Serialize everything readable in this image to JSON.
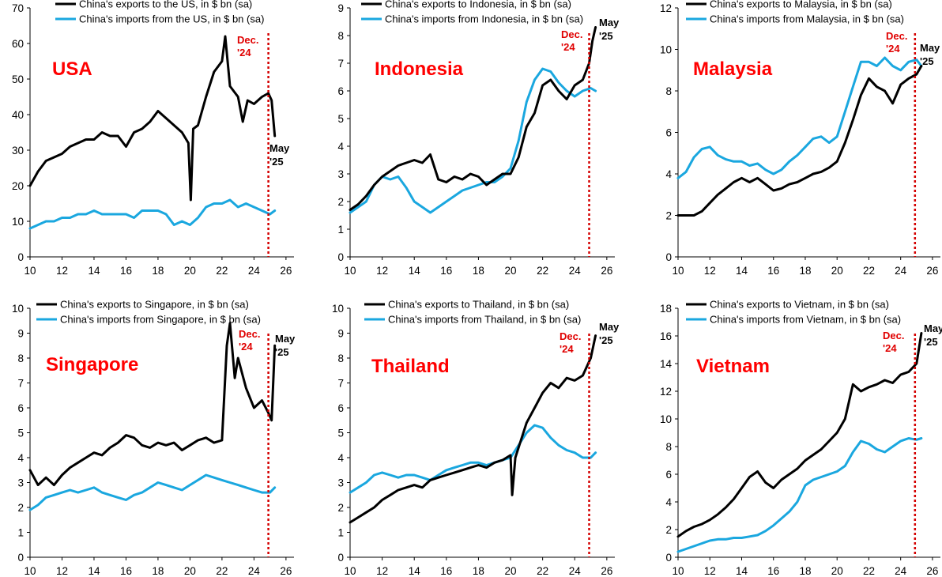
{
  "colors": {
    "exports": "#000000",
    "imports": "#1aa7df",
    "marker": "#d40000",
    "country": "#ff0000"
  },
  "annotations": {
    "dec": [
      "Dec.",
      "'24"
    ],
    "may": [
      "May",
      "'25"
    ]
  },
  "chart_data": [
    {
      "type": "line",
      "country_label": "USA",
      "ylim": [
        0,
        70
      ],
      "yticks": [
        0,
        10,
        20,
        30,
        40,
        50,
        60,
        70
      ],
      "xlim": [
        10,
        26.5
      ],
      "xticks": [
        10,
        12,
        14,
        16,
        18,
        20,
        22,
        24,
        26
      ],
      "marker_x": 24.9,
      "series": [
        {
          "name": "China's exports to the US, in $ bn (sa)",
          "x": [
            10,
            10.5,
            11,
            11.5,
            12,
            12.5,
            13,
            13.5,
            14,
            14.5,
            15,
            15.5,
            16,
            16.5,
            17,
            17.5,
            18,
            18.5,
            19,
            19.5,
            19.9,
            20.05,
            20.2,
            20.5,
            21,
            21.5,
            22,
            22.2,
            22.5,
            23,
            23.3,
            23.6,
            24,
            24.5,
            24.9,
            25.1,
            25.3
          ],
          "values": [
            20,
            24,
            27,
            28,
            29,
            31,
            32,
            33,
            33,
            35,
            34,
            34,
            31,
            35,
            36,
            38,
            41,
            39,
            37,
            35,
            32,
            16,
            36,
            37,
            45,
            52,
            55,
            62,
            48,
            45,
            38,
            44,
            43,
            45,
            46,
            44,
            34
          ]
        },
        {
          "name": "China's imports from the US, in $ bn (sa)",
          "x": [
            10,
            10.5,
            11,
            11.5,
            12,
            12.5,
            13,
            13.5,
            14,
            14.5,
            15,
            15.5,
            16,
            16.5,
            17,
            17.5,
            18,
            18.5,
            19,
            19.5,
            20,
            20.5,
            21,
            21.5,
            22,
            22.5,
            23,
            23.5,
            24,
            24.5,
            25,
            25.3
          ],
          "values": [
            8,
            9,
            10,
            10,
            11,
            11,
            12,
            12,
            13,
            12,
            12,
            12,
            12,
            11,
            13,
            13,
            13,
            12,
            9,
            10,
            9,
            11,
            14,
            15,
            15,
            16,
            14,
            15,
            14,
            13,
            12,
            13
          ]
        }
      ]
    },
    {
      "type": "line",
      "country_label": "Indonesia",
      "ylim": [
        0,
        9
      ],
      "yticks": [
        0,
        1,
        2,
        3,
        4,
        5,
        6,
        7,
        8,
        9
      ],
      "xlim": [
        10,
        26.5
      ],
      "xticks": [
        10,
        12,
        14,
        16,
        18,
        20,
        22,
        24,
        26
      ],
      "marker_x": 24.9,
      "series": [
        {
          "name": "China's exports to Indonesia, in $ bn (sa)",
          "x": [
            10,
            10.5,
            11,
            11.5,
            12,
            12.5,
            13,
            13.5,
            14,
            14.5,
            15,
            15.5,
            16,
            16.5,
            17,
            17.5,
            18,
            18.5,
            19,
            19.5,
            20,
            20.5,
            21,
            21.5,
            22,
            22.5,
            23,
            23.5,
            24,
            24.5,
            24.9,
            25.1,
            25.3
          ],
          "values": [
            1.7,
            1.9,
            2.2,
            2.6,
            2.9,
            3.1,
            3.3,
            3.4,
            3.5,
            3.4,
            3.7,
            2.8,
            2.7,
            2.9,
            2.8,
            3.0,
            2.9,
            2.6,
            2.8,
            3.0,
            3.0,
            3.6,
            4.7,
            5.2,
            6.2,
            6.4,
            6.0,
            5.7,
            6.2,
            6.4,
            7.0,
            7.8,
            8.3
          ]
        },
        {
          "name": "China's imports from Indonesia, in $ bn (sa)",
          "x": [
            10,
            10.5,
            11,
            11.5,
            12,
            12.5,
            13,
            13.5,
            14,
            14.5,
            15,
            15.5,
            16,
            16.5,
            17,
            17.5,
            18,
            18.5,
            19,
            19.5,
            20,
            20.5,
            21,
            21.5,
            22,
            22.5,
            23,
            23.5,
            24,
            24.5,
            25,
            25.3
          ],
          "values": [
            1.6,
            1.8,
            2.0,
            2.6,
            2.9,
            2.8,
            2.9,
            2.5,
            2.0,
            1.8,
            1.6,
            1.8,
            2.0,
            2.2,
            2.4,
            2.5,
            2.6,
            2.7,
            2.7,
            2.9,
            3.2,
            4.2,
            5.6,
            6.4,
            6.8,
            6.7,
            6.3,
            6.0,
            5.8,
            6.0,
            6.1,
            6.0
          ]
        }
      ]
    },
    {
      "type": "line",
      "country_label": "Malaysia",
      "ylim": [
        0,
        12
      ],
      "yticks": [
        0,
        2,
        4,
        6,
        8,
        10,
        12
      ],
      "xlim": [
        10,
        26.5
      ],
      "xticks": [
        10,
        12,
        14,
        16,
        18,
        20,
        22,
        24,
        26
      ],
      "marker_x": 24.9,
      "series": [
        {
          "name": "China's exports to Malaysia, in $ bn (sa)",
          "x": [
            10,
            10.5,
            11,
            11.5,
            12,
            12.5,
            13,
            13.5,
            14,
            14.5,
            15,
            15.5,
            16,
            16.5,
            17,
            17.5,
            18,
            18.5,
            19,
            19.5,
            20,
            20.5,
            21,
            21.5,
            22,
            22.5,
            23,
            23.5,
            24,
            24.5,
            25,
            25.3
          ],
          "values": [
            2.0,
            2.0,
            2.0,
            2.2,
            2.6,
            3.0,
            3.3,
            3.6,
            3.8,
            3.6,
            3.8,
            3.5,
            3.2,
            3.3,
            3.5,
            3.6,
            3.8,
            4.0,
            4.1,
            4.3,
            4.6,
            5.5,
            6.6,
            7.8,
            8.6,
            8.2,
            8.0,
            7.4,
            8.3,
            8.6,
            8.8,
            9.2
          ]
        },
        {
          "name": "China's imports from Malaysia, in $ bn (sa)",
          "x": [
            10,
            10.5,
            11,
            11.5,
            12,
            12.5,
            13,
            13.5,
            14,
            14.5,
            15,
            15.5,
            16,
            16.5,
            17,
            17.5,
            18,
            18.5,
            19,
            19.5,
            20,
            20.5,
            21,
            21.5,
            22,
            22.5,
            23,
            23.5,
            24,
            24.5,
            25,
            25.3
          ],
          "values": [
            3.8,
            4.1,
            4.8,
            5.2,
            5.3,
            4.9,
            4.7,
            4.6,
            4.6,
            4.4,
            4.5,
            4.2,
            4.0,
            4.2,
            4.6,
            4.9,
            5.3,
            5.7,
            5.8,
            5.5,
            5.8,
            7.0,
            8.2,
            9.4,
            9.4,
            9.2,
            9.6,
            9.2,
            9.0,
            9.4,
            9.5,
            9.2
          ]
        }
      ]
    },
    {
      "type": "line",
      "country_label": "Singapore",
      "ylim": [
        0,
        10
      ],
      "yticks": [
        0,
        1,
        2,
        3,
        4,
        5,
        6,
        7,
        8,
        9,
        10
      ],
      "xlim": [
        10,
        26.5
      ],
      "xticks": [
        10,
        12,
        14,
        16,
        18,
        20,
        22,
        24,
        26
      ],
      "marker_x": 24.9,
      "series": [
        {
          "name": "China's exports to Singapore, in $ bn (sa)",
          "x": [
            10,
            10.5,
            11,
            11.5,
            12,
            12.5,
            13,
            13.5,
            14,
            14.5,
            15,
            15.5,
            16,
            16.5,
            17,
            17.5,
            18,
            18.5,
            19,
            19.5,
            20,
            20.5,
            21,
            21.5,
            22,
            22.3,
            22.5,
            22.8,
            23,
            23.5,
            24,
            24.5,
            24.9,
            25.1,
            25.3
          ],
          "values": [
            3.5,
            2.9,
            3.2,
            2.9,
            3.3,
            3.6,
            3.8,
            4.0,
            4.2,
            4.1,
            4.4,
            4.6,
            4.9,
            4.8,
            4.5,
            4.4,
            4.6,
            4.5,
            4.6,
            4.3,
            4.5,
            4.7,
            4.8,
            4.6,
            4.7,
            8.5,
            9.4,
            7.2,
            8.0,
            6.8,
            6.0,
            6.3,
            5.8,
            5.5,
            8.5
          ]
        },
        {
          "name": "China's imports from Singapore, in $ bn (sa)",
          "x": [
            10,
            10.5,
            11,
            11.5,
            12,
            12.5,
            13,
            13.5,
            14,
            14.5,
            15,
            15.5,
            16,
            16.5,
            17,
            17.5,
            18,
            18.5,
            19,
            19.5,
            20,
            20.5,
            21,
            21.5,
            22,
            22.5,
            23,
            23.5,
            24,
            24.5,
            25,
            25.3
          ],
          "values": [
            1.9,
            2.1,
            2.4,
            2.5,
            2.6,
            2.7,
            2.6,
            2.7,
            2.8,
            2.6,
            2.5,
            2.4,
            2.3,
            2.5,
            2.6,
            2.8,
            3.0,
            2.9,
            2.8,
            2.7,
            2.9,
            3.1,
            3.3,
            3.2,
            3.1,
            3.0,
            2.9,
            2.8,
            2.7,
            2.6,
            2.6,
            2.8
          ]
        }
      ]
    },
    {
      "type": "line",
      "country_label": "Thailand",
      "ylim": [
        0,
        10
      ],
      "yticks": [
        0,
        1,
        2,
        3,
        4,
        5,
        6,
        7,
        8,
        9,
        10
      ],
      "xlim": [
        10,
        26.5
      ],
      "xticks": [
        10,
        12,
        14,
        16,
        18,
        20,
        22,
        24,
        26
      ],
      "marker_x": 24.9,
      "series": [
        {
          "name": "China's exports to Thailand, in $ bn (sa)",
          "x": [
            10,
            10.5,
            11,
            11.5,
            12,
            12.5,
            13,
            13.5,
            14,
            14.5,
            15,
            15.5,
            16,
            16.5,
            17,
            17.5,
            18,
            18.5,
            19,
            19.5,
            20,
            20.1,
            20.3,
            20.6,
            21,
            21.5,
            22,
            22.5,
            23,
            23.5,
            24,
            24.5,
            25,
            25.3
          ],
          "values": [
            1.4,
            1.6,
            1.8,
            2.0,
            2.3,
            2.5,
            2.7,
            2.8,
            2.9,
            2.8,
            3.1,
            3.2,
            3.3,
            3.4,
            3.5,
            3.6,
            3.7,
            3.6,
            3.8,
            3.9,
            4.1,
            2.5,
            4.0,
            4.6,
            5.4,
            6.0,
            6.6,
            7.0,
            6.8,
            7.2,
            7.1,
            7.3,
            8.0,
            8.9
          ]
        },
        {
          "name": "China's imports from Thailand, in $ bn (sa)",
          "x": [
            10,
            10.5,
            11,
            11.5,
            12,
            12.5,
            13,
            13.5,
            14,
            14.5,
            15,
            15.5,
            16,
            16.5,
            17,
            17.5,
            18,
            18.5,
            19,
            19.5,
            20,
            20.5,
            21,
            21.5,
            22,
            22.5,
            23,
            23.5,
            24,
            24.5,
            25,
            25.3
          ],
          "values": [
            2.6,
            2.8,
            3.0,
            3.3,
            3.4,
            3.3,
            3.2,
            3.3,
            3.3,
            3.2,
            3.1,
            3.3,
            3.5,
            3.6,
            3.7,
            3.8,
            3.8,
            3.7,
            3.8,
            3.9,
            4.0,
            4.5,
            5.0,
            5.3,
            5.2,
            4.8,
            4.5,
            4.3,
            4.2,
            4.0,
            4.0,
            4.2
          ]
        }
      ]
    },
    {
      "type": "line",
      "country_label": "Vietnam",
      "ylim": [
        0,
        18
      ],
      "yticks": [
        0,
        2,
        4,
        6,
        8,
        10,
        12,
        14,
        16,
        18
      ],
      "xlim": [
        10,
        26.5
      ],
      "xticks": [
        10,
        12,
        14,
        16,
        18,
        20,
        22,
        24,
        26
      ],
      "marker_x": 24.9,
      "series": [
        {
          "name": "China's exports to Vietnam, in $ bn (sa)",
          "x": [
            10,
            10.5,
            11,
            11.5,
            12,
            12.5,
            13,
            13.5,
            14,
            14.5,
            15,
            15.5,
            16,
            16.5,
            17,
            17.5,
            18,
            18.5,
            19,
            19.5,
            20,
            20.5,
            21,
            21.5,
            22,
            22.5,
            23,
            23.5,
            24,
            24.5,
            25,
            25.3
          ],
          "values": [
            1.5,
            1.9,
            2.2,
            2.4,
            2.7,
            3.1,
            3.6,
            4.2,
            5.0,
            5.8,
            6.2,
            5.4,
            5.0,
            5.6,
            6.0,
            6.4,
            7.0,
            7.4,
            7.8,
            8.4,
            9.0,
            10.0,
            12.5,
            12.0,
            12.3,
            12.5,
            12.8,
            12.6,
            13.2,
            13.4,
            14.0,
            16.2
          ]
        },
        {
          "name": "China's imports from Vietnam, in $ bn (sa)",
          "x": [
            10,
            10.5,
            11,
            11.5,
            12,
            12.5,
            13,
            13.5,
            14,
            14.5,
            15,
            15.5,
            16,
            16.5,
            17,
            17.5,
            18,
            18.5,
            19,
            19.5,
            20,
            20.5,
            21,
            21.5,
            22,
            22.5,
            23,
            23.5,
            24,
            24.5,
            25,
            25.3
          ],
          "values": [
            0.4,
            0.6,
            0.8,
            1.0,
            1.2,
            1.3,
            1.3,
            1.4,
            1.4,
            1.5,
            1.6,
            1.9,
            2.3,
            2.8,
            3.3,
            4.0,
            5.2,
            5.6,
            5.8,
            6.0,
            6.2,
            6.6,
            7.6,
            8.4,
            8.2,
            7.8,
            7.6,
            8.0,
            8.4,
            8.6,
            8.5,
            8.6
          ]
        }
      ]
    }
  ]
}
